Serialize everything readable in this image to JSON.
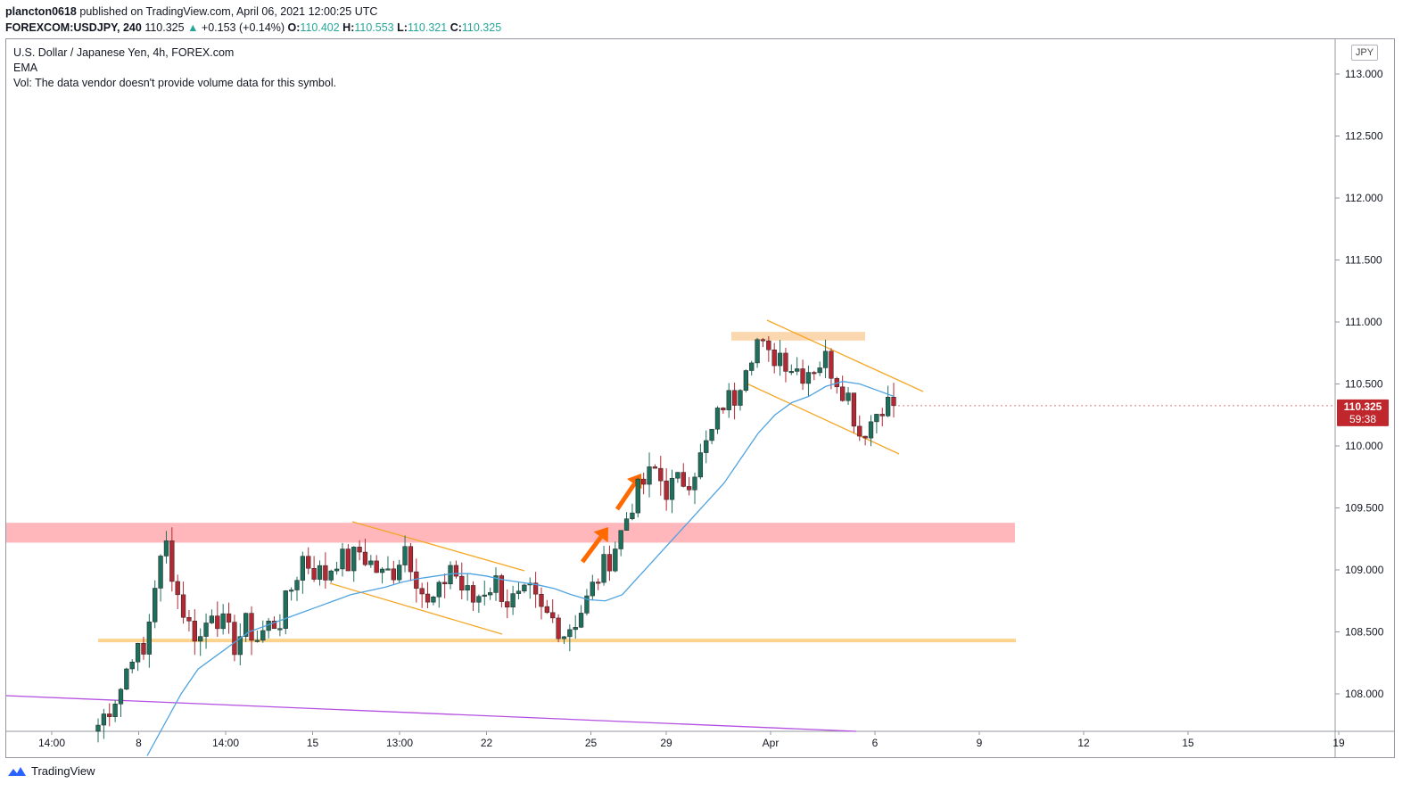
{
  "header": {
    "author": "plancton0618",
    "published_text": "published on TradingView.com, April 06, 2021 12:00:25 UTC",
    "symbol": "FOREXCOM:USDJPY, 240",
    "last": "110.325",
    "change": "+0.153 (+0.14%)",
    "o_label": "O:",
    "o": "110.402",
    "h_label": "H:",
    "h": "110.553",
    "l_label": "L:",
    "l": "110.321",
    "c_label": "C:",
    "c": "110.325"
  },
  "legend": {
    "line1": "U.S. Dollar / Japanese Yen, 4h, FOREX.com",
    "line2": "EMA",
    "line3": "Vol: The data vendor doesn't provide volume data for this symbol."
  },
  "currency": "JPY",
  "price_badge": {
    "price": "110.325",
    "countdown": "59:38"
  },
  "footer": {
    "brand": "TradingView"
  },
  "colors": {
    "up": "#26a69a",
    "candle_up": "#1e6f5c",
    "candle_down": "#b22833",
    "ema": "#4fa3e0",
    "channel": "#f5a623",
    "resistance_zone": "#ffb3b8",
    "support_line": "#fbd38d",
    "top_zone": "#fbd7b0",
    "trend": "#b44fe0",
    "arrow": "#ff6a00"
  },
  "chart_data": {
    "type": "candlestick",
    "title": "U.S. Dollar / Japanese Yen, 4h, FOREX.com",
    "ylabel": "JPY",
    "ylim": [
      107.7,
      113.3
    ],
    "y_ticks": [
      "113.000",
      "112.500",
      "112.000",
      "111.500",
      "111.000",
      "110.500",
      "110.000",
      "109.500",
      "109.000",
      "108.500",
      "108.000"
    ],
    "x_ticks": [
      {
        "label": "14:00",
        "bar": 0
      },
      {
        "label": "8",
        "bar": 15
      },
      {
        "label": "14:00",
        "bar": 30
      },
      {
        "label": "15",
        "bar": 45
      },
      {
        "label": "13:00",
        "bar": 60
      },
      {
        "label": "22",
        "bar": 75
      },
      {
        "label": "25",
        "bar": 93
      },
      {
        "label": "29",
        "bar": 106
      },
      {
        "label": "Apr",
        "bar": 124
      },
      {
        "label": "6",
        "bar": 142
      },
      {
        "label": "9",
        "bar": 160
      },
      {
        "label": "12",
        "bar": 178
      },
      {
        "label": "15",
        "bar": 196
      },
      {
        "label": "19",
        "bar": 222
      }
    ],
    "close_path": [
      107.75,
      107.9,
      108.05,
      108.35,
      108.3,
      108.9,
      109.2,
      108.8,
      108.55,
      108.45,
      108.7,
      108.55,
      108.4,
      108.55,
      108.45,
      108.55,
      108.6,
      108.85,
      109.1,
      109.0,
      108.95,
      109.1,
      109.05,
      109.15,
      109.05,
      108.95,
      109.0,
      109.2,
      108.95,
      108.7,
      108.8,
      109.05,
      108.85,
      108.75,
      108.85,
      108.9,
      108.75,
      108.75,
      108.8,
      108.65,
      108.6,
      108.5,
      108.6,
      108.75,
      108.95,
      109.1,
      109.3,
      109.55,
      109.7,
      109.8,
      109.65,
      109.7,
      109.75,
      109.9,
      110.1,
      110.35,
      110.4,
      110.7,
      110.85,
      110.7,
      110.75,
      110.65,
      110.6,
      110.65,
      110.7,
      110.55,
      110.4,
      110.1,
      110.2,
      110.35,
      110.325
    ],
    "ema_path": [
      107.5,
      107.75,
      108.0,
      108.2,
      108.3,
      108.4,
      108.5,
      108.55,
      108.6,
      108.65,
      108.7,
      108.75,
      108.8,
      108.83,
      108.86,
      108.9,
      108.93,
      108.95,
      108.97,
      108.97,
      108.95,
      108.92,
      108.9,
      108.88,
      108.85,
      108.8,
      108.76,
      108.75,
      108.8,
      108.95,
      109.1,
      109.25,
      109.4,
      109.55,
      109.7,
      109.9,
      110.1,
      110.25,
      110.35,
      110.4,
      110.48,
      110.52,
      110.5,
      110.45,
      110.4
    ],
    "last_price": 110.325,
    "annotations": [
      {
        "type": "zone",
        "label": "resistance",
        "from": 109.22,
        "to": 109.38
      },
      {
        "type": "hline",
        "label": "support",
        "value": 108.44
      },
      {
        "type": "zone",
        "label": "top",
        "from": 110.85,
        "to": 110.92
      },
      {
        "type": "channel",
        "label": "descending channel 1"
      },
      {
        "type": "channel",
        "label": "descending channel 2"
      },
      {
        "type": "trendline",
        "label": "long-term trend"
      },
      {
        "type": "arrow",
        "label": "breakout arrow 1"
      },
      {
        "type": "arrow",
        "label": "breakout arrow 2"
      }
    ]
  }
}
